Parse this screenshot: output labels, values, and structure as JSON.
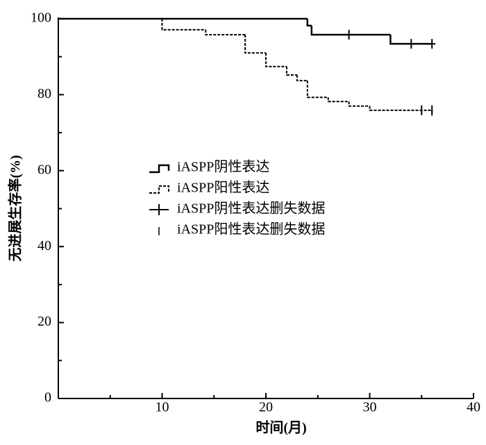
{
  "chart_data": {
    "type": "step",
    "x_label": "时间(月)",
    "y_label": "无进展生存率(%)",
    "xlim": [
      0,
      40
    ],
    "ylim": [
      0,
      100
    ],
    "xticks": [
      10,
      20,
      30,
      40
    ],
    "yticks": [
      0,
      20,
      40,
      60,
      80,
      100
    ],
    "xminorticks": [
      5,
      15,
      25,
      35
    ],
    "yminorticks": [
      10,
      30,
      50,
      70,
      90
    ],
    "series": [
      {
        "name": "iASPP阴性表达",
        "color": "#000000",
        "style": "solid",
        "x": [
          0,
          24,
          24.4,
          32,
          36
        ],
        "values": [
          100,
          98.2,
          95.8,
          93.4,
          93.4
        ]
      },
      {
        "name": "iASPP阳性表达",
        "color": "#000000",
        "style": "dashed",
        "x": [
          0,
          10,
          14.2,
          18,
          20,
          22,
          23,
          24,
          26,
          28,
          30,
          36
        ],
        "values": [
          100,
          97.1,
          95.8,
          91,
          87.4,
          85.2,
          83.7,
          79.3,
          78.2,
          77,
          75.9,
          74.5
        ]
      },
      {
        "name": "iASPP阴性表达删失数据",
        "color": "#000000",
        "style": "plus",
        "x": [
          28,
          34,
          36
        ],
        "values": [
          95.8,
          93.4,
          93.4
        ]
      },
      {
        "name": "iASPP阳性表达删失数据",
        "color": "#000000",
        "style": "tick",
        "x": [
          35,
          36
        ],
        "values": [
          75.9,
          75.9
        ]
      }
    ]
  }
}
